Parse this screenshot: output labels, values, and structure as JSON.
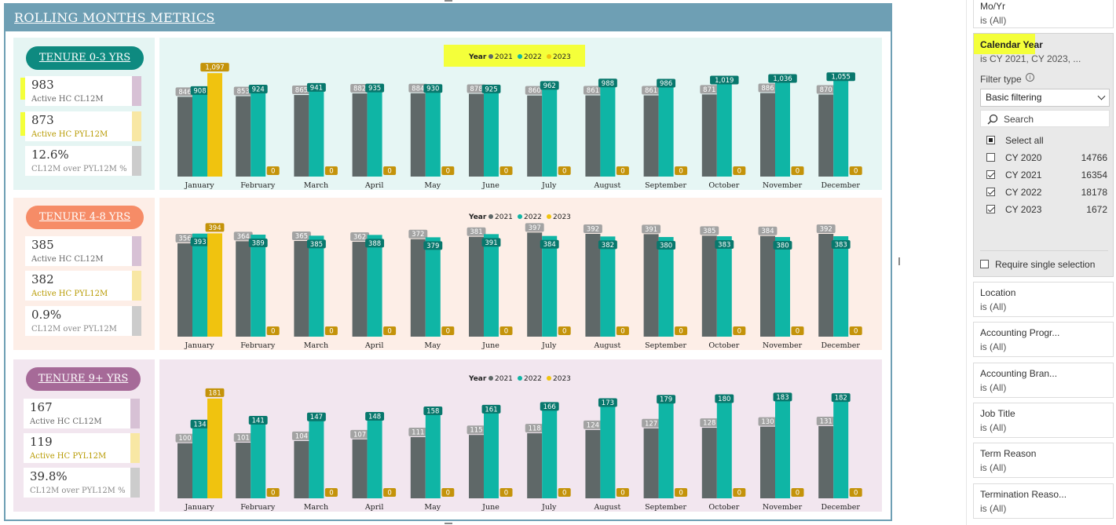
{
  "report": {
    "title": "ROLLING MONTHS METRICS"
  },
  "colors": {
    "header": "#6e9fb4",
    "bar_2021": "#5f6868",
    "bar_2022": "#0fb5a5",
    "bar_2023": "#f0c30f",
    "label_2021": "#a3a3a3",
    "label_2022": "#08786d",
    "label_2023": "#c4930a",
    "highlight": "#f4ff3a"
  },
  "months": [
    "January",
    "February",
    "March",
    "April",
    "May",
    "June",
    "July",
    "August",
    "September",
    "October",
    "November",
    "December"
  ],
  "legend": {
    "title": "Year",
    "items": [
      "2021",
      "2022",
      "2023"
    ]
  },
  "sections": [
    {
      "tenure_label": "TENURE 0-3 YRS",
      "pill_color": "#0e8a80",
      "sidebar_bg": "#e5f5f3",
      "chart_bg": "#e6f6f4",
      "kpis": [
        {
          "value": "983",
          "label": "Active HC CL12M",
          "label_color": "#666666",
          "strip_color": "#d7c1d5"
        },
        {
          "value": "873",
          "label": "Active HC PYL12M",
          "label_color": "#b79a00",
          "strip_color": "#f8e7a4"
        },
        {
          "value": "12.6%",
          "label": "CL12M over PYL12M %",
          "label_color": "#888888",
          "strip_color": "#cccccc"
        }
      ]
    },
    {
      "tenure_label": "TENURE 4-8 YRS",
      "pill_color": "#f68c67",
      "sidebar_bg": "#fdeee7",
      "chart_bg": "#fdeee7",
      "kpis": [
        {
          "value": "385",
          "label": "Active HC CL12M",
          "label_color": "#666666",
          "strip_color": "#d7c1d5"
        },
        {
          "value": "382",
          "label": "Active HC PYL12M",
          "label_color": "#b79a00",
          "strip_color": "#f8e7a4"
        },
        {
          "value": "0.9%",
          "label": "CL12M over PYL12M",
          "label_color": "#888888",
          "strip_color": "#cccccc"
        }
      ]
    },
    {
      "tenure_label": "TENURE 9+ YRS",
      "pill_color": "#a66a98",
      "sidebar_bg": "#f2e6ef",
      "chart_bg": "#f2e6ef",
      "kpis": [
        {
          "value": "167",
          "label": "Active HC CL12M",
          "label_color": "#666666",
          "strip_color": "#d7c1d5"
        },
        {
          "value": "119",
          "label": "Active HC PYL12M",
          "label_color": "#b79a00",
          "strip_color": "#f8e7a4"
        },
        {
          "value": "39.8%",
          "label": "CL12M over PYL12M %",
          "label_color": "#888888",
          "strip_color": "#cccccc"
        }
      ]
    }
  ],
  "chart_data": [
    {
      "type": "bar",
      "title": "TENURE 0-3 YRS",
      "categories": [
        "January",
        "February",
        "March",
        "April",
        "May",
        "June",
        "July",
        "August",
        "September",
        "October",
        "November",
        "December"
      ],
      "series": [
        {
          "name": "2021",
          "values": [
            846,
            853,
            865,
            882,
            884,
            878,
            860,
            861,
            861,
            871,
            886,
            870
          ]
        },
        {
          "name": "2022",
          "values": [
            908,
            924,
            941,
            935,
            930,
            925,
            962,
            988,
            986,
            1019,
            1036,
            1055
          ]
        },
        {
          "name": "2023",
          "values": [
            1097,
            0,
            0,
            0,
            0,
            0,
            0,
            0,
            0,
            0,
            0,
            0
          ]
        }
      ],
      "value_labels": {
        "2021": [
          "846",
          "853",
          "865",
          "882",
          "884",
          "878",
          "860",
          "861",
          "861",
          "871",
          "886",
          "870"
        ],
        "2022": [
          "908",
          "924",
          "941",
          "935",
          "930",
          "925",
          "962",
          "988",
          "986",
          "1,019",
          "1,036",
          "1,055"
        ],
        "2023": [
          "1,097",
          "0",
          "0",
          "0",
          "0",
          "0",
          "0",
          "0",
          "0",
          "0",
          "0",
          "0"
        ]
      },
      "ymax": 1140,
      "legend_position": "top-center"
    },
    {
      "type": "bar",
      "title": "TENURE 4-8 YRS",
      "categories": [
        "January",
        "February",
        "March",
        "April",
        "May",
        "June",
        "July",
        "August",
        "September",
        "October",
        "November",
        "December"
      ],
      "series": [
        {
          "name": "2021",
          "values": [
            356,
            364,
            365,
            362,
            372,
            381,
            397,
            392,
            391,
            385,
            384,
            392
          ]
        },
        {
          "name": "2022",
          "values": [
            393,
            389,
            385,
            388,
            379,
            391,
            384,
            382,
            380,
            383,
            380,
            383
          ]
        },
        {
          "name": "2023",
          "values": [
            394,
            0,
            0,
            0,
            0,
            0,
            0,
            0,
            0,
            0,
            0,
            0
          ]
        }
      ],
      "value_labels": {
        "2021": [
          "356",
          "364",
          "365",
          "362",
          "372",
          "381",
          "397",
          "392",
          "391",
          "385",
          "384",
          "392"
        ],
        "2022": [
          "393",
          "389",
          "385",
          "388",
          "379",
          "391",
          "384",
          "382",
          "380",
          "383",
          "380",
          "383"
        ],
        "2023": [
          "394",
          "0",
          "0",
          "0",
          "0",
          "0",
          "0",
          "0",
          "0",
          "0",
          "0",
          "0"
        ]
      },
      "ymax": 410,
      "legend_position": "top-center"
    },
    {
      "type": "bar",
      "title": "TENURE 9+ YRS",
      "categories": [
        "January",
        "February",
        "March",
        "April",
        "May",
        "June",
        "July",
        "August",
        "September",
        "October",
        "November",
        "December"
      ],
      "series": [
        {
          "name": "2021",
          "values": [
            100,
            101,
            104,
            107,
            111,
            115,
            118,
            124,
            127,
            128,
            130,
            131
          ]
        },
        {
          "name": "2022",
          "values": [
            134,
            141,
            147,
            148,
            158,
            161,
            166,
            173,
            179,
            180,
            183,
            182
          ]
        },
        {
          "name": "2023",
          "values": [
            181,
            0,
            0,
            0,
            0,
            0,
            0,
            0,
            0,
            0,
            0,
            0
          ]
        }
      ],
      "value_labels": {
        "2021": [
          "100",
          "101",
          "104",
          "107",
          "111",
          "115",
          "118",
          "124",
          "127",
          "128",
          "130",
          "131"
        ],
        "2022": [
          "134",
          "141",
          "147",
          "148",
          "158",
          "161",
          "166",
          "173",
          "179",
          "180",
          "183",
          "182"
        ],
        "2023": [
          "181",
          "0",
          "0",
          "0",
          "0",
          "0",
          "0",
          "0",
          "0",
          "0",
          "0",
          "0"
        ]
      },
      "ymax": 195,
      "legend_position": "top-center"
    }
  ],
  "filters": {
    "top_card": {
      "title": "Mo/Yr",
      "subtitle": "is (All)"
    },
    "calendar_year": {
      "title": "Calendar Year",
      "subtitle": "is CY 2021, CY 2023, ...",
      "filter_type_label": "Filter type",
      "filter_type_value": "Basic filtering",
      "search_placeholder": "Search",
      "select_all_label": "Select all",
      "options": [
        {
          "label": "CY 2020",
          "count": "14766",
          "checked": false
        },
        {
          "label": "CY 2021",
          "count": "16354",
          "checked": true
        },
        {
          "label": "CY 2022",
          "count": "18178",
          "checked": true
        },
        {
          "label": "CY 2023",
          "count": "1672",
          "checked": true
        }
      ],
      "require_single_label": "Require single selection"
    },
    "cards": [
      {
        "title": "Location",
        "subtitle": "is (All)"
      },
      {
        "title": "Accounting Progr...",
        "subtitle": "is (All)"
      },
      {
        "title": "Accounting Bran...",
        "subtitle": "is (All)"
      },
      {
        "title": "Job Title",
        "subtitle": "is (All)"
      },
      {
        "title": "Term Reason",
        "subtitle": "is (All)"
      },
      {
        "title": "Termination Reaso...",
        "subtitle": "is (All)"
      }
    ]
  }
}
